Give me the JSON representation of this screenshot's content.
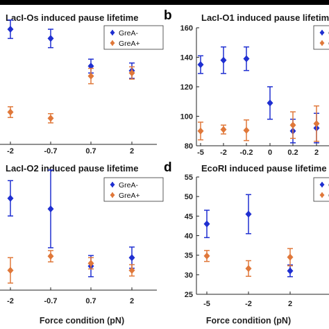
{
  "colors": {
    "grea_minus": "#1f2fd1",
    "grea_plus": "#e0783a"
  },
  "panels": {
    "b_label": "b",
    "d_label": "d"
  },
  "axis": {
    "xlabel": "Force condition (pN)"
  },
  "chart_data": [
    {
      "type": "scatter",
      "panel": "a",
      "title": "LacI-Os induced pause lifetime",
      "categories": [
        "-2",
        "-0.7",
        "0.7",
        "2"
      ],
      "ylim": [
        0,
        170
      ],
      "yticks": [],
      "legend": [
        "GreA-",
        "GreA+"
      ],
      "legend_position": "top-right",
      "series": [
        {
          "name": "GreA-",
          "values": [
            150,
            138,
            102,
            96
          ],
          "err": [
            12,
            12,
            9,
            10
          ]
        },
        {
          "name": "GreA+",
          "values": [
            42,
            34,
            89,
            93
          ],
          "err": [
            7,
            6,
            10,
            8
          ]
        }
      ]
    },
    {
      "type": "scatter",
      "panel": "b",
      "title": "LacI-O1 induced pause lifetime",
      "categories": [
        "-5",
        "-2",
        "-0.2",
        "0",
        "0.2",
        "2"
      ],
      "ylim": [
        80,
        160
      ],
      "yticks": [
        80,
        100,
        120,
        140,
        160
      ],
      "legend": [
        "GreA-",
        "GreA+"
      ],
      "legend_position": "top-right",
      "series": [
        {
          "name": "GreA-",
          "values": [
            135,
            138,
            139,
            109,
            90,
            92
          ],
          "err": [
            6,
            9,
            8,
            11,
            8,
            10
          ]
        },
        {
          "name": "GreA+",
          "values": [
            90,
            91,
            90.5,
            null,
            94,
            95
          ],
          "err": [
            6,
            3,
            7,
            null,
            9,
            12
          ]
        }
      ]
    },
    {
      "type": "scatter",
      "panel": "c",
      "title": "LacI-O2 induced pause lifetime",
      "categories": [
        "-2",
        "-0.7",
        "0.7",
        "2"
      ],
      "ylim": [
        0,
        170
      ],
      "yticks": [],
      "legend": [
        "GreA-",
        "GreA+"
      ],
      "legend_position": "top-right",
      "series": [
        {
          "name": "GreA-",
          "values": [
            130,
            115,
            34,
            46
          ],
          "err": [
            25,
            55,
            15,
            15
          ]
        },
        {
          "name": "GreA+",
          "values": [
            28,
            48,
            38,
            28
          ],
          "err": [
            18,
            8,
            8,
            8
          ]
        }
      ]
    },
    {
      "type": "scatter",
      "panel": "d",
      "title": "EcoRI induced pause lifetime",
      "categories": [
        "-5",
        "-2",
        "2"
      ],
      "ylim": [
        25,
        55
      ],
      "yticks": [
        25,
        30,
        35,
        40,
        45,
        50,
        55
      ],
      "legend": [
        "GreA-",
        "GreA+"
      ],
      "legend_position": "top-right",
      "series": [
        {
          "name": "GreA-",
          "values": [
            43,
            45.5,
            31
          ],
          "err": [
            3.5,
            5,
            1.5
          ]
        },
        {
          "name": "GreA+",
          "values": [
            34.8,
            31.6,
            34.5
          ],
          "err": [
            1.4,
            2,
            2.2
          ]
        }
      ]
    }
  ]
}
